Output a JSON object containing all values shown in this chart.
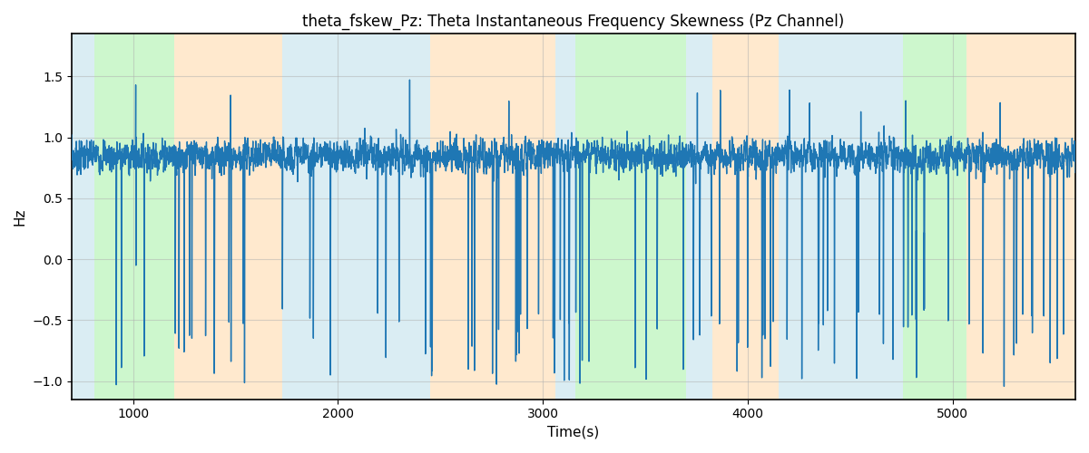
{
  "title": "theta_fskew_Pz: Theta Instantaneous Frequency Skewness (Pz Channel)",
  "xlabel": "Time(s)",
  "ylabel": "Hz",
  "xlim": [
    700,
    5600
  ],
  "ylim": [
    -1.15,
    1.85
  ],
  "line_color": "#1f77b4",
  "line_width": 1.0,
  "background_bands": [
    {
      "xmin": 700,
      "xmax": 810,
      "color": "#add8e6",
      "alpha": 0.45
    },
    {
      "xmin": 810,
      "xmax": 1200,
      "color": "#90ee90",
      "alpha": 0.45
    },
    {
      "xmin": 1200,
      "xmax": 1730,
      "color": "#ffd59e",
      "alpha": 0.5
    },
    {
      "xmin": 1730,
      "xmax": 1870,
      "color": "#add8e6",
      "alpha": 0.45
    },
    {
      "xmin": 1870,
      "xmax": 2450,
      "color": "#add8e6",
      "alpha": 0.45
    },
    {
      "xmin": 2450,
      "xmax": 2560,
      "color": "#ffd59e",
      "alpha": 0.5
    },
    {
      "xmin": 2560,
      "xmax": 3060,
      "color": "#ffd59e",
      "alpha": 0.5
    },
    {
      "xmin": 3060,
      "xmax": 3160,
      "color": "#add8e6",
      "alpha": 0.45
    },
    {
      "xmin": 3160,
      "xmax": 3700,
      "color": "#90ee90",
      "alpha": 0.45
    },
    {
      "xmin": 3700,
      "xmax": 3830,
      "color": "#add8e6",
      "alpha": 0.45
    },
    {
      "xmin": 3830,
      "xmax": 4150,
      "color": "#ffd59e",
      "alpha": 0.5
    },
    {
      "xmin": 4150,
      "xmax": 4730,
      "color": "#add8e6",
      "alpha": 0.45
    },
    {
      "xmin": 4730,
      "xmax": 4760,
      "color": "#add8e6",
      "alpha": 0.45
    },
    {
      "xmin": 4760,
      "xmax": 5070,
      "color": "#90ee90",
      "alpha": 0.45
    },
    {
      "xmin": 5070,
      "xmax": 5600,
      "color": "#ffd59e",
      "alpha": 0.5
    }
  ],
  "yticks": [
    -1.0,
    -0.5,
    0.0,
    0.5,
    1.0,
    1.5
  ],
  "xticks": [
    1000,
    2000,
    3000,
    4000,
    5000
  ],
  "grid_color": "#b0b0b0",
  "grid_alpha": 0.5,
  "grid_linewidth": 0.8,
  "title_fontsize": 12,
  "label_fontsize": 11
}
